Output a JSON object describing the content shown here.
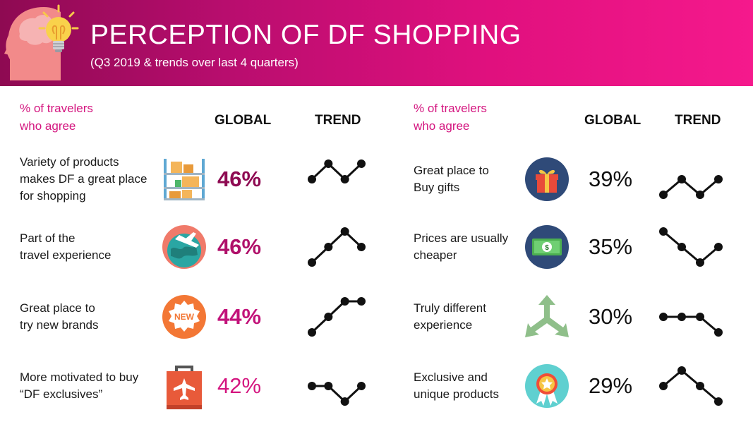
{
  "header": {
    "title": "PERCEPTION OF DF SHOPPING",
    "subtitle": "(Q3 2019 & trends over last 4 quarters)"
  },
  "colors": {
    "magenta": "#d4157f",
    "dark_magenta": "#8e0a52",
    "black": "#111111",
    "banner_start": "#8e0a52",
    "banner_end": "#f5198c"
  },
  "chart_data": [
    {
      "type": "table",
      "column_title": "% of travelers who agree",
      "column_title_lines": [
        "% of travelers",
        "who agree"
      ],
      "global_header": "GLOBAL",
      "trend_header": "TREND",
      "rows": [
        {
          "label_lines": [
            "Variety of products",
            "makes DF a great place",
            "for shopping"
          ],
          "value": "46%",
          "icon": "shelves-with-boxes-icon",
          "value_color": "#8e0a52",
          "value_bold": true,
          "trend": [
            2,
            3,
            2,
            3
          ]
        },
        {
          "label_lines": [
            "Part of the",
            "travel experience"
          ],
          "value": "46%",
          "icon": "globe-airplane-icon",
          "value_color": "#b0106a",
          "value_bold": true,
          "trend": [
            1,
            2,
            3,
            2
          ]
        },
        {
          "label_lines": [
            "Great place to",
            "try new brands"
          ],
          "value": "44%",
          "icon": "new-badge-icon",
          "value_color": "#c2137a",
          "value_bold": true,
          "trend": [
            1,
            2,
            3,
            3
          ]
        },
        {
          "label_lines": [
            "More motivated to buy",
            "“DF exclusives”"
          ],
          "value": "42%",
          "icon": "shopping-bag-airplane-icon",
          "value_color": "#d4157f",
          "value_bold": false,
          "trend": [
            2,
            2,
            1,
            2
          ]
        }
      ]
    },
    {
      "type": "table",
      "column_title": "% of travelers who agree",
      "column_title_lines": [
        "% of travelers",
        "who agree"
      ],
      "global_header": "GLOBAL",
      "trend_header": "TREND",
      "rows": [
        {
          "label_lines": [
            "Great place to",
            "Buy gifts"
          ],
          "value": "39%",
          "icon": "gift-box-icon",
          "value_color": "#111111",
          "value_bold": false,
          "trend": [
            1,
            2,
            1,
            2
          ]
        },
        {
          "label_lines": [
            "Prices are usually",
            "cheaper"
          ],
          "value": "35%",
          "icon": "banknote-icon",
          "value_color": "#111111",
          "value_bold": false,
          "trend": [
            3,
            2,
            1,
            2
          ]
        },
        {
          "label_lines": [
            "Truly different",
            "experience"
          ],
          "value": "30%",
          "icon": "diverging-arrows-icon",
          "value_color": "#111111",
          "value_bold": false,
          "trend": [
            2,
            2,
            2,
            1
          ]
        },
        {
          "label_lines": [
            "Exclusive and",
            "unique products"
          ],
          "value": "29%",
          "icon": "award-ribbon-icon",
          "value_color": "#111111",
          "value_bold": false,
          "trend": [
            2,
            3,
            2,
            1
          ]
        }
      ]
    }
  ]
}
